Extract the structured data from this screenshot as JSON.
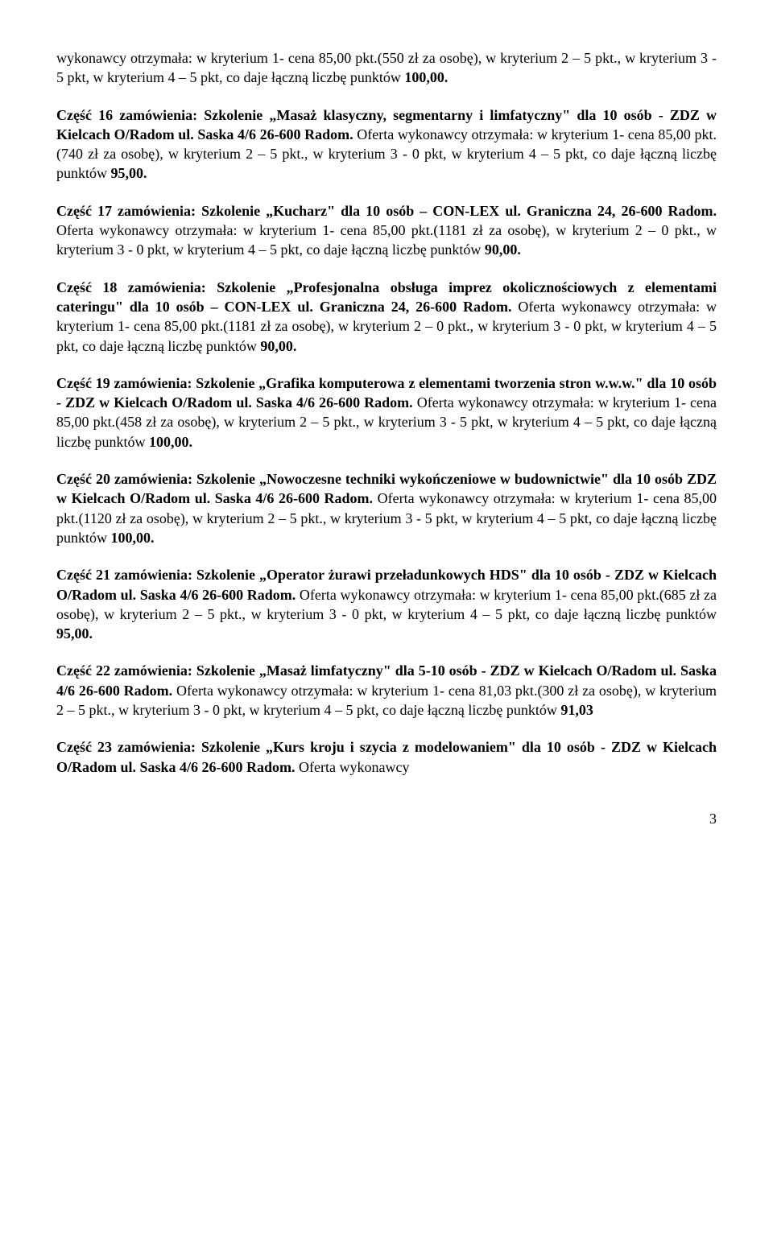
{
  "paragraphs": [
    {
      "runs": [
        {
          "text": "wykonawcy otrzymała: w kryterium 1- cena 85,00 pkt.(550 zł za osobę), w kryterium 2 – 5 pkt., w kryterium 3 - 5 pkt, w kryterium 4 – 5 pkt,  co daje łączną  liczbę punktów ",
          "bold": false
        },
        {
          "text": "100,00.",
          "bold": true
        }
      ]
    },
    {
      "runs": [
        {
          "text": "Część 16 zamówienia: Szkolenie „Masaż klasyczny, segmentarny i limfatyczny\" dla 10 osób - ZDZ w Kielcach O/Radom ul. Saska 4/6 26-600 Radom. ",
          "bold": true
        },
        {
          "text": "Oferta wykonawcy otrzymała: w kryterium 1- cena 85,00 pkt.(740 zł za osobę), w kryterium 2 – 5 pkt., w kryterium 3 - 0 pkt, w kryterium 4 – 5 pkt,  co daje łączną  liczbę punktów ",
          "bold": false
        },
        {
          "text": "95,00.",
          "bold": true
        }
      ]
    },
    {
      "runs": [
        {
          "text": "Część 17 zamówienia: Szkolenie „Kucharz\" dla 10 osób – CON-LEX ul. Graniczna 24, 26-600 Radom. ",
          "bold": true
        },
        {
          "text": "Oferta wykonawcy otrzymała: w kryterium 1- cena 85,00 pkt.(1181  zł za osobę), w kryterium 2 – 0 pkt., w kryterium 3 - 0 pkt, w kryterium 4 – 5 pkt,  co daje łączną  liczbę punktów ",
          "bold": false
        },
        {
          "text": "90,00.",
          "bold": true
        }
      ]
    },
    {
      "runs": [
        {
          "text": "Część 18 zamówienia: Szkolenie „Profesjonalna obsługa imprez okolicznościowych z elementami cateringu\" dla 10 osób – CON-LEX ul. Graniczna 24, 26-600 Radom. ",
          "bold": true
        },
        {
          "text": "Oferta wykonawcy otrzymała: w kryterium 1- cena 85,00 pkt.(1181 zł za osobę), w kryterium 2 – 0 pkt., w kryterium 3 - 0 pkt, w kryterium 4 – 5 pkt,  co daje łączną  liczbę punktów ",
          "bold": false
        },
        {
          "text": "90,00.",
          "bold": true
        }
      ]
    },
    {
      "runs": [
        {
          "text": "Część 19 zamówienia: Szkolenie „Grafika komputerowa z elementami tworzenia stron w.w.w.\" dla 10 osób - ZDZ w Kielcach O/Radom ul. Saska 4/6 26-600 Radom. ",
          "bold": true
        },
        {
          "text": " Oferta wykonawcy otrzymała: w kryterium 1- cena 85,00 pkt.(458 zł za osobę), w kryterium 2 – 5 pkt., w kryterium 3 - 5 pkt, w kryterium 4 – 5 pkt,  co daje łączną  liczbę punktów ",
          "bold": false
        },
        {
          "text": "100,00.",
          "bold": true
        }
      ]
    },
    {
      "runs": [
        {
          "text": "Część 20 zamówienia: Szkolenie „Nowoczesne techniki wykończeniowe w budownictwie\" dla 10 osób ZDZ w Kielcach O/Radom ul. Saska 4/6 26-600 Radom. ",
          "bold": true
        },
        {
          "text": " Oferta wykonawcy otrzymała: w kryterium 1- cena 85,00 pkt.(1120 zł za osobę), w kryterium 2 – 5 pkt., w kryterium 3 - 5 pkt, w kryterium 4 – 5 pkt,  co daje łączną  liczbę punktów ",
          "bold": false
        },
        {
          "text": "100,00.",
          "bold": true
        }
      ]
    },
    {
      "runs": [
        {
          "text": "Część 21 zamówienia: Szkolenie „Operator żurawi przeładunkowych HDS\" dla 10 osób - ZDZ w Kielcach O/Radom ul. Saska 4/6 26-600 Radom. ",
          "bold": true
        },
        {
          "text": " Oferta wykonawcy otrzymała: w kryterium 1- cena 85,00 pkt.(685 zł za osobę), w kryterium 2 – 5 pkt., w kryterium 3 - 0 pkt, w kryterium 4 – 5 pkt,  co daje łączną  liczbę punktów ",
          "bold": false
        },
        {
          "text": "95,00.",
          "bold": true
        }
      ]
    },
    {
      "runs": [
        {
          "text": "Część 22 zamówienia: Szkolenie „Masaż limfatyczny\" dla  5-10 osób - ZDZ w Kielcach O/Radom ul. Saska 4/6 26-600 Radom. ",
          "bold": true
        },
        {
          "text": "Oferta wykonawcy otrzymała: w kryterium 1- cena 81,03 pkt.(300 zł za osobę), w kryterium 2 – 5 pkt., w kryterium 3 - 0 pkt, w kryterium 4 – 5 pkt,  co daje łączną  liczbę punktów ",
          "bold": false
        },
        {
          "text": "91,03",
          "bold": true
        }
      ]
    },
    {
      "runs": [
        {
          "text": "Część 23 zamówienia: Szkolenie „Kurs kroju i szycia z modelowaniem\" dla  10 osób - ZDZ w Kielcach O/Radom ul. Saska 4/6 26-600 Radom. ",
          "bold": true
        },
        {
          "text": "Oferta wykonawcy",
          "bold": false
        }
      ]
    }
  ],
  "page_number": "3"
}
